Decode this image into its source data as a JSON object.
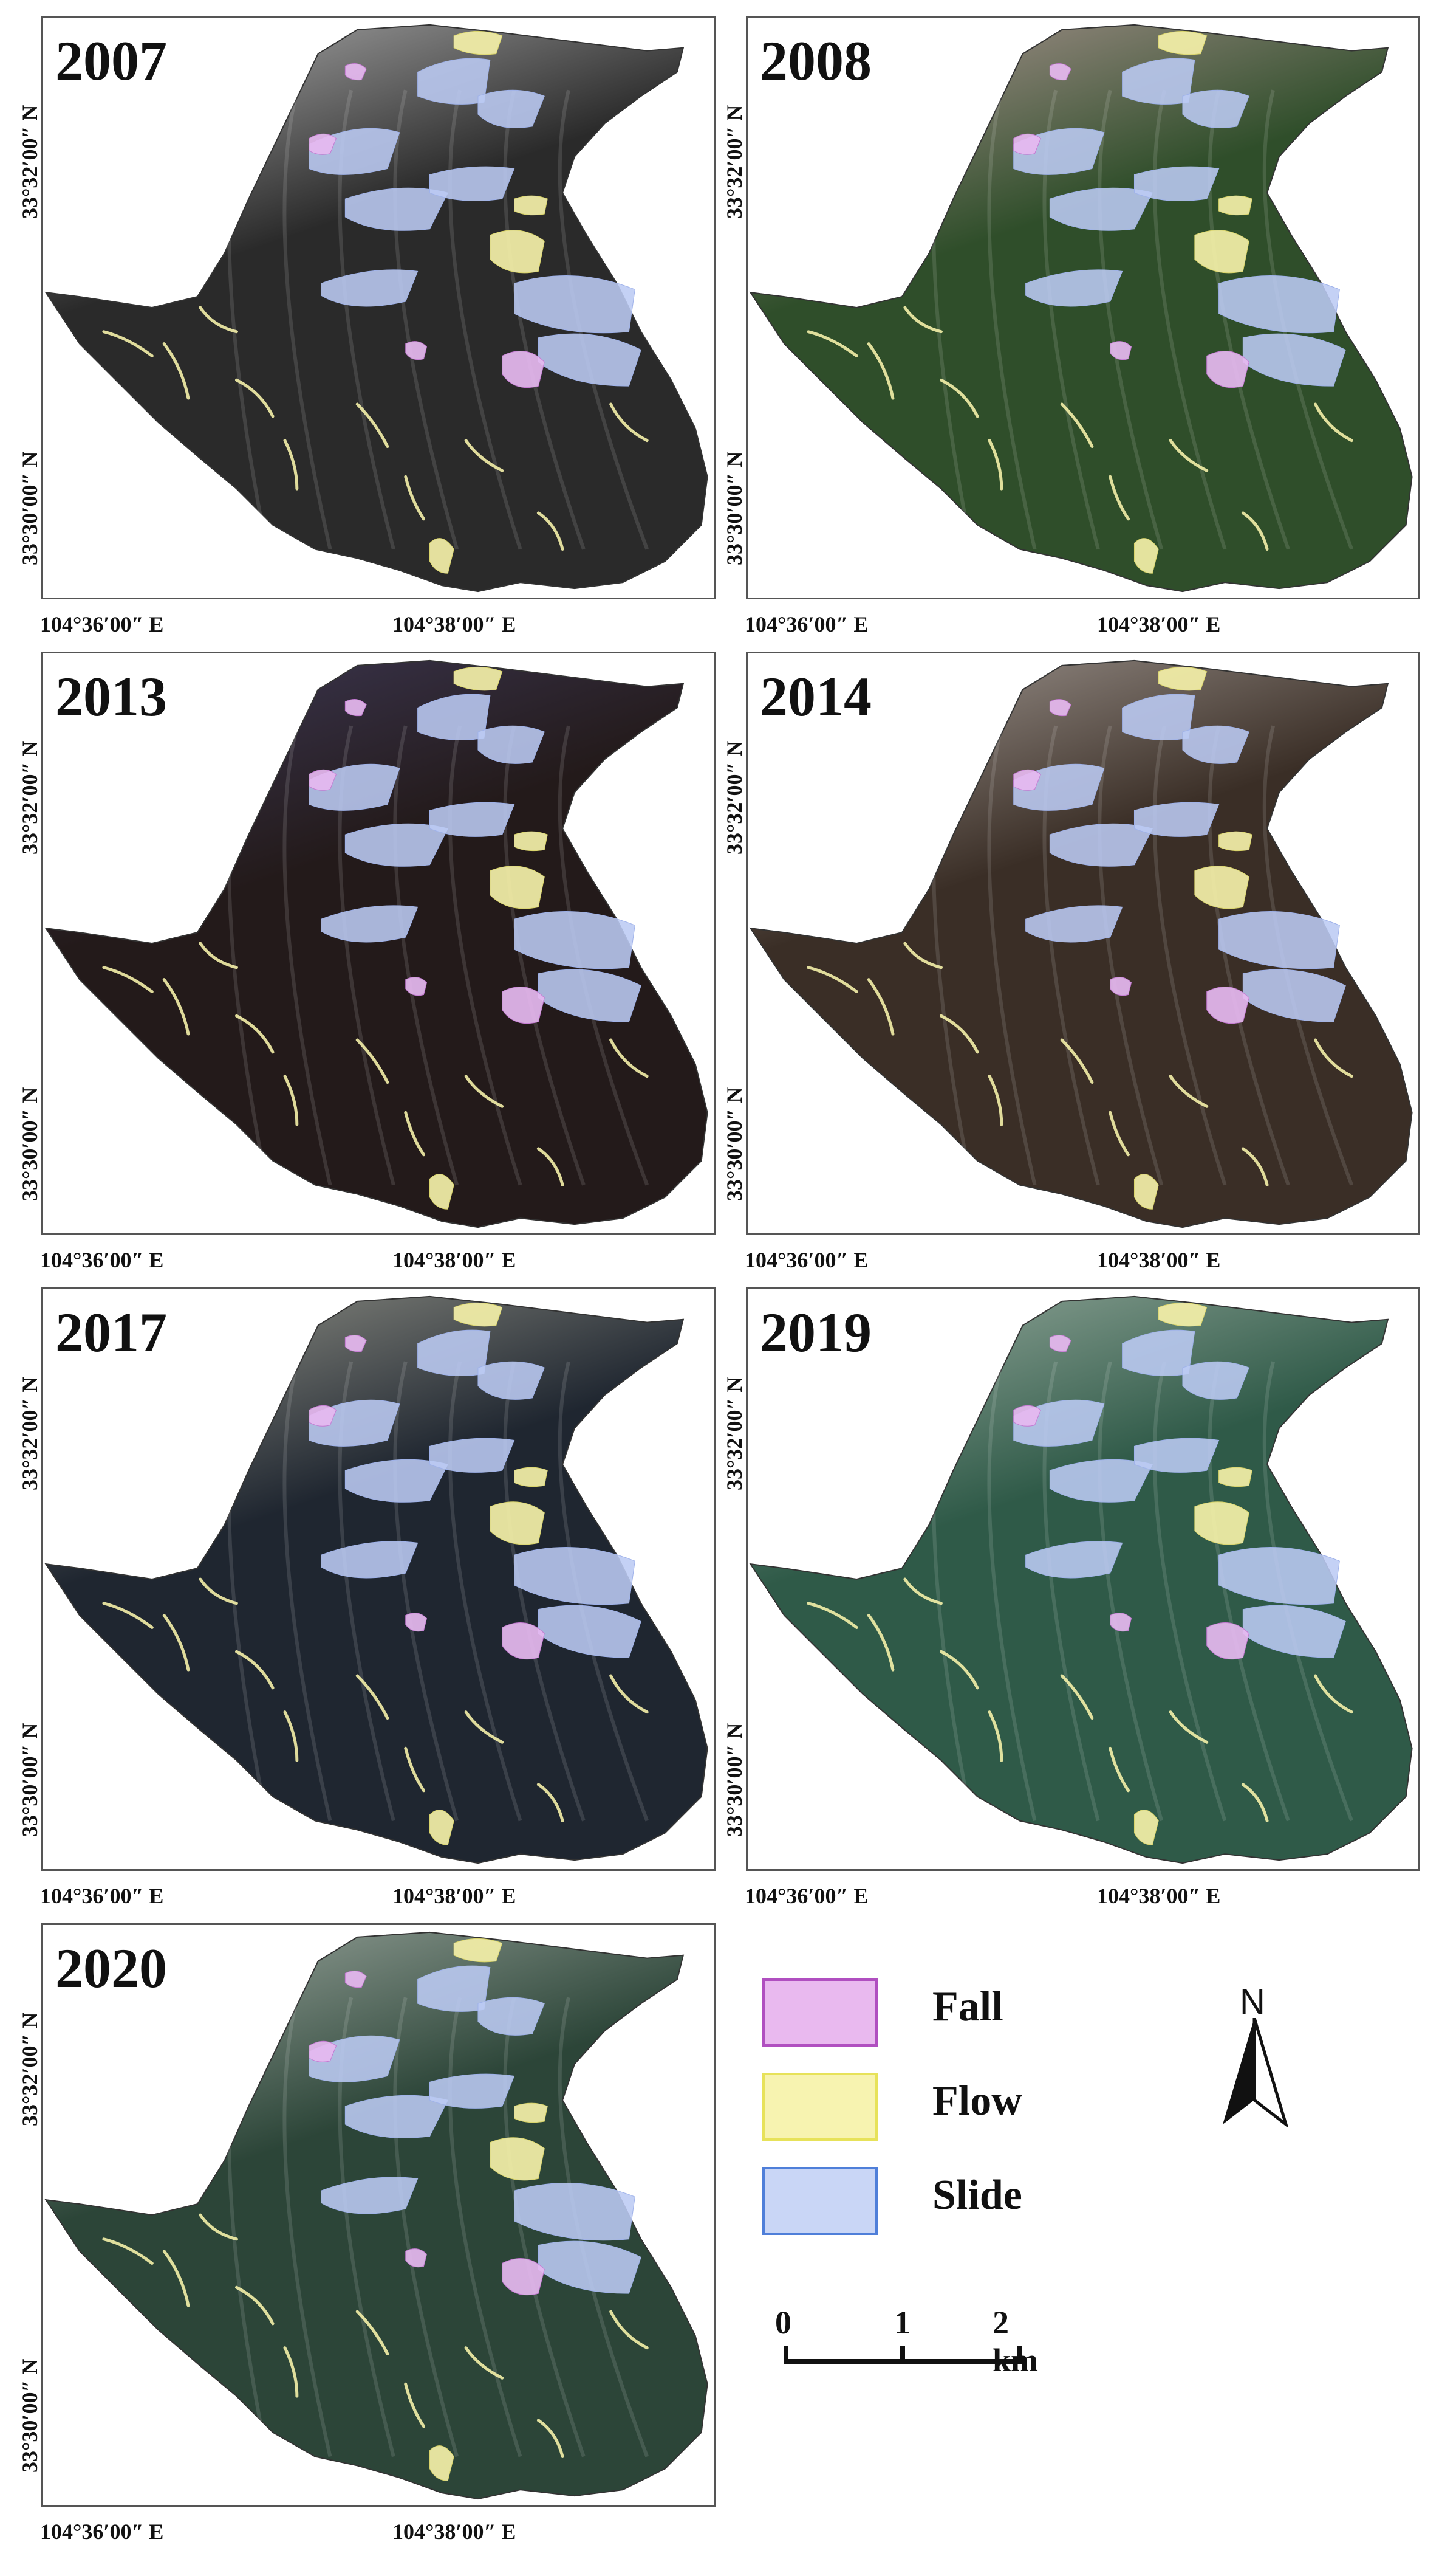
{
  "panels": [
    {
      "year": "2007",
      "terrain": "#2a2a2a",
      "highlight": "#b9b9b9"
    },
    {
      "year": "2008",
      "terrain": "#2f4e2a",
      "highlight": "#b59a9a"
    },
    {
      "year": "2013",
      "terrain": "#231a1a",
      "highlight": "#3f3a58"
    },
    {
      "year": "2014",
      "terrain": "#3a2e26",
      "highlight": "#a8a09a"
    },
    {
      "year": "2017",
      "terrain": "#1f2630",
      "highlight": "#9a9a8e"
    },
    {
      "year": "2019",
      "terrain": "#2f5a48",
      "highlight": "#9fb0a4"
    },
    {
      "year": "2020",
      "terrain": "#2c4538",
      "highlight": "#a6b0a8"
    }
  ],
  "lat_labels": {
    "north": "33°32′00″ N",
    "south": "33°30′00″ N"
  },
  "lon_labels": {
    "west": "104°36′00″ E",
    "east": "104°38′00″ E"
  },
  "legend": {
    "items": [
      {
        "label": "Fall",
        "fill": "#e9b9ef",
        "stroke": "#b04fc0"
      },
      {
        "label": "Flow",
        "fill": "#f7f3b0",
        "stroke": "#e7e25a"
      },
      {
        "label": "Slide",
        "fill": "#c9d6f6",
        "stroke": "#4f7fd9"
      }
    ]
  },
  "north_arrow": {
    "label": "N"
  },
  "scale_bar": {
    "ticks": [
      "0",
      "1",
      "2 km"
    ]
  },
  "colors": {
    "fall": "#e6b8f0",
    "flow": "#f4f0a8",
    "slide": "#bccbf4"
  }
}
